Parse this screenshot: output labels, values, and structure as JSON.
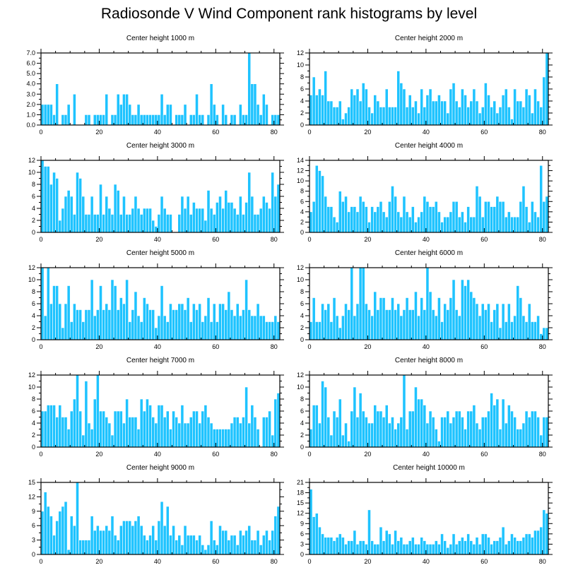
{
  "page": {
    "title": "Radiosonde V Wind Component rank histograms by level"
  },
  "style": {
    "bar_color": "#1ec3ff",
    "bar_edge": "#ffffff",
    "frame_color": "#000000"
  },
  "chart_data": [
    {
      "type": "bar",
      "title": "Center height 1000 m",
      "xlabel": "",
      "ylabel": "",
      "xlim": [
        0,
        82
      ],
      "ylim": [
        0,
        7
      ],
      "xticks": [
        0,
        20,
        40,
        60,
        80
      ],
      "xticklabels": [
        "0",
        "20",
        "40",
        "60",
        "80"
      ],
      "yticks": [
        0,
        1,
        2,
        3,
        4,
        5,
        6,
        7
      ],
      "yticklabels": [
        "0.0",
        "1.0",
        "2.0",
        "3.0",
        "4.0",
        "5.0",
        "6.0",
        "7.0"
      ],
      "values": [
        2,
        2,
        2,
        2,
        1,
        4,
        0,
        1,
        1,
        2,
        0,
        3,
        0,
        0,
        0,
        1,
        1,
        0,
        1,
        1,
        1,
        1,
        3,
        0,
        1,
        1,
        3,
        2,
        3,
        3,
        2,
        1,
        1,
        2,
        1,
        1,
        1,
        1,
        1,
        1,
        1,
        3,
        1,
        2,
        2,
        0,
        1,
        1,
        1,
        2,
        0,
        1,
        1,
        3,
        1,
        1,
        0,
        1,
        4,
        2,
        1,
        0,
        2,
        1,
        0,
        1,
        1,
        0,
        2,
        1,
        1,
        7,
        4,
        4,
        2,
        1,
        3,
        2,
        0,
        1,
        1,
        1
      ]
    },
    {
      "type": "bar",
      "title": "Center height 2000 m",
      "xlabel": "",
      "ylabel": "",
      "xlim": [
        0,
        82
      ],
      "ylim": [
        0,
        12
      ],
      "xticks": [
        0,
        20,
        40,
        60,
        80
      ],
      "xticklabels": [
        "0",
        "20",
        "40",
        "60",
        "80"
      ],
      "yticks": [
        0,
        2,
        4,
        6,
        8,
        10,
        12
      ],
      "yticklabels": [
        "0",
        "2",
        "4",
        "6",
        "8",
        "10",
        "12"
      ],
      "values": [
        5,
        8,
        5,
        6,
        5,
        9,
        4,
        4,
        3,
        3,
        4,
        1,
        2,
        3,
        6,
        5,
        6,
        4,
        7,
        6,
        3,
        2,
        5,
        4,
        3,
        3,
        6,
        3,
        3,
        3,
        9,
        7,
        6,
        3,
        5,
        3,
        4,
        2,
        6,
        3,
        5,
        6,
        4,
        4,
        5,
        4,
        4,
        2,
        6,
        7,
        4,
        3,
        6,
        5,
        3,
        4,
        6,
        4,
        2,
        3,
        7,
        5,
        3,
        4,
        2,
        3,
        5,
        6,
        3,
        1,
        6,
        4,
        4,
        3,
        6,
        5,
        2,
        6,
        4,
        3,
        8,
        12
      ]
    },
    {
      "type": "bar",
      "title": "Center height 3000 m",
      "xlabel": "",
      "ylabel": "",
      "xlim": [
        0,
        82
      ],
      "ylim": [
        0,
        12
      ],
      "xticks": [
        0,
        20,
        40,
        60,
        80
      ],
      "xticklabels": [
        "0",
        "20",
        "40",
        "60",
        "80"
      ],
      "yticks": [
        0,
        2,
        4,
        6,
        8,
        10,
        12
      ],
      "yticklabels": [
        "0",
        "2",
        "4",
        "6",
        "8",
        "10",
        "12"
      ],
      "values": [
        12,
        11,
        11,
        8,
        10,
        9,
        2,
        4,
        6,
        7,
        6,
        3,
        10,
        9,
        6,
        3,
        3,
        6,
        3,
        3,
        8,
        3,
        6,
        4,
        3,
        8,
        7,
        3,
        6,
        3,
        3,
        4,
        6,
        4,
        3,
        4,
        4,
        4,
        2,
        1,
        3,
        6,
        4,
        3,
        3,
        0,
        0,
        3,
        6,
        4,
        6,
        3,
        5,
        4,
        4,
        4,
        2,
        7,
        4,
        3,
        5,
        6,
        4,
        7,
        5,
        5,
        4,
        3,
        6,
        3,
        5,
        10,
        6,
        3,
        3,
        4,
        6,
        5,
        4,
        10,
        6,
        8
      ]
    },
    {
      "type": "bar",
      "title": "Center height 4000 m",
      "xlabel": "",
      "ylabel": "",
      "xlim": [
        0,
        82
      ],
      "ylim": [
        0,
        14
      ],
      "xticks": [
        0,
        20,
        40,
        60,
        80
      ],
      "xticklabels": [
        "0",
        "20",
        "40",
        "60",
        "80"
      ],
      "yticks": [
        0,
        2,
        4,
        6,
        8,
        10,
        12,
        14
      ],
      "yticklabels": [
        "0",
        "2",
        "4",
        "6",
        "8",
        "10",
        "12",
        "14"
      ],
      "values": [
        4,
        6,
        13,
        12,
        11,
        7,
        5,
        5,
        3,
        2,
        8,
        6,
        7,
        4,
        5,
        5,
        4,
        7,
        6,
        5,
        2,
        5,
        4,
        5,
        6,
        4,
        3,
        6,
        9,
        7,
        4,
        3,
        7,
        4,
        3,
        5,
        2,
        3,
        4,
        7,
        6,
        5,
        5,
        6,
        4,
        2,
        3,
        3,
        4,
        6,
        6,
        3,
        4,
        2,
        5,
        3,
        3,
        9,
        7,
        3,
        6,
        6,
        5,
        5,
        7,
        6,
        6,
        3,
        4,
        3,
        3,
        3,
        6,
        9,
        5,
        2,
        6,
        4,
        3,
        13,
        6,
        7
      ]
    },
    {
      "type": "bar",
      "title": "Center height 5000 m",
      "xlabel": "",
      "ylabel": "",
      "xlim": [
        0,
        82
      ],
      "ylim": [
        0,
        12
      ],
      "xticks": [
        0,
        20,
        40,
        60,
        80
      ],
      "xticklabels": [
        "0",
        "20",
        "40",
        "60",
        "80"
      ],
      "yticks": [
        0,
        2,
        4,
        6,
        8,
        10,
        12
      ],
      "yticklabels": [
        "0",
        "2",
        "4",
        "6",
        "8",
        "10",
        "12"
      ],
      "values": [
        12,
        4,
        12,
        6,
        9,
        9,
        6,
        2,
        6,
        9,
        3,
        6,
        5,
        5,
        3,
        5,
        5,
        10,
        4,
        5,
        9,
        5,
        6,
        5,
        10,
        9,
        5,
        7,
        6,
        10,
        3,
        5,
        8,
        4,
        3,
        7,
        6,
        5,
        5,
        2,
        4,
        9,
        4,
        3,
        6,
        5,
        5,
        6,
        6,
        5,
        7,
        3,
        6,
        5,
        6,
        3,
        4,
        7,
        3,
        6,
        3,
        6,
        6,
        5,
        8,
        5,
        4,
        6,
        4,
        5,
        10,
        5,
        4,
        4,
        6,
        4,
        4,
        3,
        3,
        3,
        4,
        3
      ]
    },
    {
      "type": "bar",
      "title": "Center height 6000 m",
      "xlabel": "",
      "ylabel": "",
      "xlim": [
        0,
        82
      ],
      "ylim": [
        0,
        12
      ],
      "xticks": [
        0,
        20,
        40,
        60,
        80
      ],
      "xticklabels": [
        "0",
        "20",
        "40",
        "60",
        "80"
      ],
      "yticks": [
        0,
        2,
        4,
        6,
        8,
        10,
        12
      ],
      "yticklabels": [
        "0",
        "2",
        "4",
        "6",
        "8",
        "10",
        "12"
      ],
      "values": [
        3,
        7,
        3,
        3,
        6,
        5,
        6,
        3,
        7,
        4,
        2,
        4,
        6,
        5,
        12,
        4,
        6,
        12,
        12,
        6,
        5,
        4,
        8,
        5,
        7,
        7,
        5,
        5,
        7,
        5,
        6,
        4,
        5,
        7,
        5,
        5,
        8,
        4,
        7,
        5,
        12,
        8,
        5,
        4,
        7,
        3,
        6,
        5,
        7,
        10,
        5,
        4,
        10,
        9,
        10,
        8,
        7,
        6,
        4,
        6,
        5,
        6,
        3,
        5,
        6,
        2,
        6,
        3,
        6,
        3,
        4,
        9,
        7,
        4,
        3,
        6,
        3,
        3,
        4,
        1,
        2,
        2
      ]
    },
    {
      "type": "bar",
      "title": "Center height 7000 m",
      "xlabel": "",
      "ylabel": "",
      "xlim": [
        0,
        82
      ],
      "ylim": [
        0,
        12
      ],
      "xticks": [
        0,
        20,
        40,
        60,
        80
      ],
      "xticklabels": [
        "0",
        "20",
        "40",
        "60",
        "80"
      ],
      "yticks": [
        0,
        2,
        4,
        6,
        8,
        10,
        12
      ],
      "yticklabels": [
        "0",
        "2",
        "4",
        "6",
        "8",
        "10",
        "12"
      ],
      "values": [
        6,
        6,
        7,
        7,
        7,
        5,
        7,
        5,
        5,
        3,
        6,
        8,
        12,
        6,
        2,
        11,
        4,
        3,
        8,
        12,
        6,
        6,
        5,
        4,
        2,
        6,
        6,
        6,
        4,
        8,
        5,
        5,
        5,
        3,
        8,
        6,
        8,
        7,
        5,
        4,
        7,
        7,
        5,
        6,
        3,
        6,
        5,
        4,
        7,
        4,
        4,
        5,
        6,
        6,
        4,
        6,
        7,
        5,
        4,
        3,
        3,
        3,
        3,
        3,
        3,
        4,
        5,
        5,
        4,
        5,
        10,
        4,
        7,
        5,
        3,
        0,
        5,
        5,
        6,
        2,
        8,
        9
      ]
    },
    {
      "type": "bar",
      "title": "Center height 8000 m",
      "xlabel": "",
      "ylabel": "",
      "xlim": [
        0,
        82
      ],
      "ylim": [
        0,
        12
      ],
      "xticks": [
        0,
        20,
        40,
        60,
        80
      ],
      "xticklabels": [
        "0",
        "20",
        "40",
        "60",
        "80"
      ],
      "yticks": [
        0,
        2,
        4,
        6,
        8,
        10,
        12
      ],
      "yticklabels": [
        "0",
        "2",
        "4",
        "6",
        "8",
        "10",
        "12"
      ],
      "values": [
        3,
        7,
        7,
        4,
        11,
        10,
        5,
        2,
        6,
        5,
        8,
        2,
        4,
        1,
        6,
        10,
        5,
        9,
        6,
        5,
        4,
        4,
        7,
        6,
        6,
        5,
        7,
        4,
        5,
        3,
        4,
        5,
        12,
        3,
        6,
        6,
        10,
        8,
        8,
        7,
        4,
        6,
        5,
        3,
        1,
        5,
        5,
        6,
        4,
        5,
        6,
        6,
        5,
        3,
        6,
        6,
        7,
        4,
        3,
        5,
        5,
        6,
        9,
        7,
        8,
        3,
        8,
        4,
        7,
        6,
        5,
        3,
        3,
        4,
        6,
        5,
        6,
        6,
        5,
        2,
        5,
        5
      ]
    },
    {
      "type": "bar",
      "title": "Center height 9000 m",
      "xlabel": "",
      "ylabel": "",
      "xlim": [
        0,
        82
      ],
      "ylim": [
        0,
        15
      ],
      "xticks": [
        0,
        20,
        40,
        60,
        80
      ],
      "xticklabels": [
        "0",
        "20",
        "40",
        "60",
        "80"
      ],
      "yticks": [
        0,
        3,
        6,
        9,
        12,
        15
      ],
      "yticklabels": [
        "0",
        "3",
        "6",
        "9",
        "12",
        "15"
      ],
      "values": [
        9,
        13,
        10,
        8,
        4,
        7,
        9,
        10,
        11,
        1,
        8,
        6,
        15,
        3,
        3,
        3,
        3,
        8,
        5,
        6,
        5,
        5,
        6,
        5,
        8,
        4,
        3,
        6,
        7,
        7,
        7,
        6,
        7,
        8,
        6,
        4,
        3,
        4,
        6,
        3,
        7,
        11,
        6,
        10,
        4,
        6,
        3,
        4,
        2,
        6,
        4,
        4,
        4,
        3,
        4,
        2,
        1,
        2,
        7,
        3,
        2,
        6,
        5,
        5,
        3,
        4,
        4,
        2,
        5,
        4,
        5,
        6,
        3,
        3,
        5,
        2,
        4,
        5,
        3,
        5,
        8,
        10
      ]
    },
    {
      "type": "bar",
      "title": "Center height 10000 m",
      "xlabel": "",
      "ylabel": "",
      "xlim": [
        0,
        82
      ],
      "ylim": [
        0,
        21
      ],
      "xticks": [
        0,
        20,
        40,
        60,
        80
      ],
      "xticklabels": [
        "0",
        "20",
        "40",
        "60",
        "80"
      ],
      "yticks": [
        0,
        3,
        6,
        9,
        12,
        15,
        18,
        21
      ],
      "yticklabels": [
        "0",
        "3",
        "6",
        "9",
        "12",
        "15",
        "18",
        "21"
      ],
      "values": [
        19,
        11,
        12,
        8,
        6,
        5,
        5,
        5,
        4,
        5,
        6,
        5,
        3,
        4,
        4,
        7,
        3,
        4,
        4,
        3,
        13,
        4,
        3,
        3,
        8,
        4,
        7,
        6,
        3,
        7,
        4,
        5,
        3,
        3,
        4,
        5,
        3,
        3,
        5,
        4,
        3,
        3,
        3,
        4,
        3,
        6,
        4,
        2,
        3,
        6,
        3,
        4,
        5,
        4,
        6,
        4,
        3,
        5,
        3,
        6,
        6,
        5,
        3,
        4,
        4,
        5,
        8,
        3,
        4,
        6,
        5,
        4,
        4,
        5,
        6,
        6,
        5,
        7,
        7,
        8,
        13,
        12
      ]
    }
  ]
}
